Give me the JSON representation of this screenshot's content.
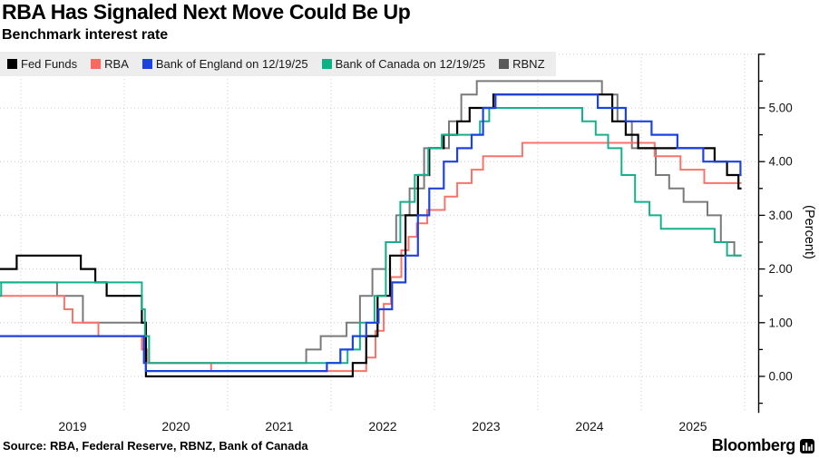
{
  "header": {
    "title": "RBA Has Signaled Next Move Could Be Up",
    "subtitle": "Benchmark interest rate"
  },
  "legend": {
    "items": [
      {
        "label": "Fed Funds",
        "color": "#000000"
      },
      {
        "label": "RBA",
        "color": "#f8695f"
      },
      {
        "label": "Bank of England on 12/19/25",
        "color": "#1e43dc"
      },
      {
        "label": "Bank of Canada on 12/19/25",
        "color": "#0eb184"
      },
      {
        "label": "RBNZ",
        "color": "#5a5a5a"
      }
    ]
  },
  "chart_data": {
    "type": "line",
    "step": true,
    "title": "RBA Has Signaled Next Move Could Be Up",
    "subtitle": "Benchmark interest rate",
    "xlabel": "",
    "ylabel": "(Percent)",
    "grid": "dotted",
    "legend_position": "top-left",
    "xlim": [
      2018.78,
      2026.13
    ],
    "ylim": [
      -0.7,
      6.0
    ],
    "x_gridlines": [
      2019,
      2020,
      2021,
      2022,
      2023,
      2024,
      2025,
      2026
    ],
    "x_ticks": [
      {
        "t": 2019.5,
        "label": "2019"
      },
      {
        "t": 2020.5,
        "label": "2020"
      },
      {
        "t": 2021.5,
        "label": "2021"
      },
      {
        "t": 2022.5,
        "label": "2022"
      },
      {
        "t": 2023.5,
        "label": "2023"
      },
      {
        "t": 2024.5,
        "label": "2024"
      },
      {
        "t": 2025.5,
        "label": "2025"
      }
    ],
    "y_ticks": [
      {
        "value": 0,
        "label": "0.00"
      },
      {
        "value": 1,
        "label": "1.00"
      },
      {
        "value": 2,
        "label": "2.00"
      },
      {
        "value": 3,
        "label": "3.00"
      },
      {
        "value": 4,
        "label": "4.00"
      },
      {
        "value": 5,
        "label": "5.00"
      }
    ],
    "y_minor_tick_step": 0.5,
    "series": [
      {
        "name": "Fed Funds",
        "color": "#000000",
        "width": 2.2,
        "points": [
          [
            2018.78,
            2.0
          ],
          [
            2018.96,
            2.25
          ],
          [
            2019.58,
            2.0
          ],
          [
            2019.72,
            1.75
          ],
          [
            2019.83,
            1.5
          ],
          [
            2020.17,
            1.0
          ],
          [
            2020.21,
            0.0
          ],
          [
            2022.21,
            0.25
          ],
          [
            2022.34,
            0.75
          ],
          [
            2022.45,
            1.5
          ],
          [
            2022.57,
            2.25
          ],
          [
            2022.72,
            3.0
          ],
          [
            2022.84,
            3.75
          ],
          [
            2022.95,
            4.25
          ],
          [
            2023.09,
            4.5
          ],
          [
            2023.22,
            4.75
          ],
          [
            2023.34,
            5.0
          ],
          [
            2023.57,
            5.25
          ],
          [
            2024.72,
            4.75
          ],
          [
            2024.85,
            4.5
          ],
          [
            2024.97,
            4.25
          ],
          [
            2025.71,
            4.0
          ],
          [
            2025.83,
            3.75
          ],
          [
            2025.94,
            3.5
          ],
          [
            2025.97,
            3.5
          ]
        ]
      },
      {
        "name": "RBA",
        "color": "#f8736c",
        "width": 2,
        "points": [
          [
            2018.78,
            1.5
          ],
          [
            2019.42,
            1.25
          ],
          [
            2019.5,
            1.0
          ],
          [
            2019.75,
            0.75
          ],
          [
            2020.17,
            0.5
          ],
          [
            2020.22,
            0.25
          ],
          [
            2020.84,
            0.1
          ],
          [
            2022.34,
            0.35
          ],
          [
            2022.43,
            0.85
          ],
          [
            2022.51,
            1.35
          ],
          [
            2022.58,
            1.85
          ],
          [
            2022.68,
            2.35
          ],
          [
            2022.75,
            2.6
          ],
          [
            2022.83,
            2.85
          ],
          [
            2022.93,
            3.1
          ],
          [
            2023.1,
            3.35
          ],
          [
            2023.22,
            3.6
          ],
          [
            2023.36,
            3.85
          ],
          [
            2023.47,
            4.1
          ],
          [
            2023.85,
            4.35
          ],
          [
            2025.13,
            4.1
          ],
          [
            2025.38,
            3.85
          ],
          [
            2025.61,
            3.6
          ],
          [
            2025.97,
            3.6
          ]
        ]
      },
      {
        "name": "Bank of England on 12/19/25",
        "color": "#1e43dc",
        "width": 2.2,
        "points": [
          [
            2018.78,
            0.75
          ],
          [
            2020.19,
            0.25
          ],
          [
            2020.21,
            0.1
          ],
          [
            2021.96,
            0.25
          ],
          [
            2022.09,
            0.5
          ],
          [
            2022.21,
            0.75
          ],
          [
            2022.34,
            1.0
          ],
          [
            2022.46,
            1.25
          ],
          [
            2022.59,
            1.75
          ],
          [
            2022.72,
            2.25
          ],
          [
            2022.84,
            3.0
          ],
          [
            2022.95,
            3.5
          ],
          [
            2023.09,
            4.0
          ],
          [
            2023.22,
            4.25
          ],
          [
            2023.36,
            4.5
          ],
          [
            2023.47,
            5.0
          ],
          [
            2023.59,
            5.25
          ],
          [
            2024.58,
            5.0
          ],
          [
            2024.85,
            4.75
          ],
          [
            2025.1,
            4.5
          ],
          [
            2025.35,
            4.25
          ],
          [
            2025.6,
            4.0
          ],
          [
            2025.96,
            3.75
          ],
          [
            2025.97,
            3.75
          ]
        ]
      },
      {
        "name": "Bank of Canada on 12/19/25",
        "color": "#16b08c",
        "width": 2,
        "points": [
          [
            2018.78,
            1.5
          ],
          [
            2018.81,
            1.75
          ],
          [
            2020.17,
            1.25
          ],
          [
            2020.2,
            0.75
          ],
          [
            2020.24,
            0.25
          ],
          [
            2022.16,
            0.5
          ],
          [
            2022.28,
            1.0
          ],
          [
            2022.42,
            1.5
          ],
          [
            2022.53,
            2.5
          ],
          [
            2022.67,
            3.25
          ],
          [
            2022.81,
            3.75
          ],
          [
            2022.94,
            4.25
          ],
          [
            2023.07,
            4.5
          ],
          [
            2023.44,
            4.75
          ],
          [
            2023.53,
            5.0
          ],
          [
            2024.43,
            4.75
          ],
          [
            2024.56,
            4.5
          ],
          [
            2024.68,
            4.25
          ],
          [
            2024.81,
            3.75
          ],
          [
            2024.94,
            3.25
          ],
          [
            2025.08,
            3.0
          ],
          [
            2025.19,
            2.75
          ],
          [
            2025.71,
            2.5
          ],
          [
            2025.83,
            2.25
          ],
          [
            2025.97,
            2.25
          ]
        ]
      },
      {
        "name": "RBNZ",
        "color": "#7a7a7a",
        "width": 2,
        "points": [
          [
            2018.78,
            1.75
          ],
          [
            2019.35,
            1.5
          ],
          [
            2019.6,
            1.0
          ],
          [
            2020.21,
            0.25
          ],
          [
            2021.76,
            0.5
          ],
          [
            2021.9,
            0.75
          ],
          [
            2022.15,
            1.0
          ],
          [
            2022.28,
            1.5
          ],
          [
            2022.4,
            2.0
          ],
          [
            2022.53,
            2.5
          ],
          [
            2022.63,
            3.0
          ],
          [
            2022.76,
            3.5
          ],
          [
            2022.9,
            4.25
          ],
          [
            2023.14,
            4.75
          ],
          [
            2023.26,
            5.25
          ],
          [
            2023.41,
            5.5
          ],
          [
            2024.62,
            5.25
          ],
          [
            2024.77,
            4.75
          ],
          [
            2024.91,
            4.25
          ],
          [
            2025.14,
            3.75
          ],
          [
            2025.27,
            3.5
          ],
          [
            2025.41,
            3.25
          ],
          [
            2025.64,
            3.0
          ],
          [
            2025.77,
            2.5
          ],
          [
            2025.9,
            2.25
          ],
          [
            2025.97,
            2.25
          ]
        ]
      }
    ],
    "draw_order": [
      4,
      1,
      0,
      3,
      2
    ]
  },
  "style": {
    "grid_color": "#c8c8c8",
    "axis_color": "#000000",
    "legend_bg": "#ededed",
    "tick_label_color": "#141414"
  },
  "footer": {
    "source": "Source: RBA, Federal Reserve, RBNZ, Bank of Canada",
    "brand": "Bloomberg"
  }
}
